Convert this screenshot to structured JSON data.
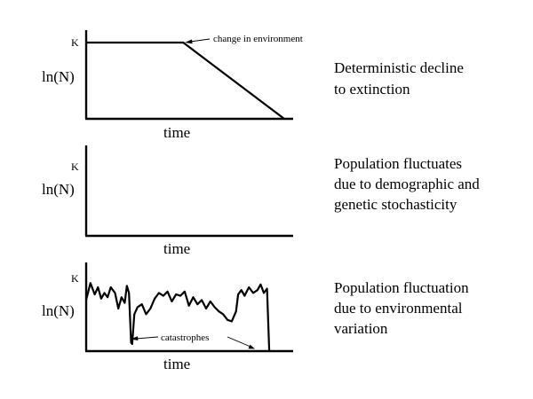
{
  "chart_data": [
    {
      "type": "line",
      "ylabel": "ln(N)",
      "xlabel": "time",
      "k_label": "K",
      "description": [
        "Deterministic decline",
        "to extinction"
      ],
      "annotation": "change in environment",
      "x": [
        0,
        0.49,
        1.0
      ],
      "y": [
        1.0,
        1.0,
        0.0
      ],
      "ylim": [
        0,
        1.2
      ]
    },
    {
      "type": "line",
      "ylabel": "ln(N)",
      "xlabel": "time",
      "k_label": "K",
      "description": [
        "Population fluctuates",
        "due to demographic and",
        "genetic stochasticity"
      ],
      "x": [],
      "y": []
    },
    {
      "type": "line",
      "ylabel": "ln(N)",
      "xlabel": "time",
      "k_label": "K",
      "description": [
        "Population fluctuation",
        "due to environmental",
        "variation"
      ],
      "annotation": "catastrophes",
      "x": [
        0,
        0.02,
        0.04,
        0.055,
        0.07,
        0.085,
        0.1,
        0.115,
        0.135,
        0.15,
        0.165,
        0.18,
        0.19,
        0.2,
        0.21,
        0.215,
        0.225,
        0.24,
        0.26,
        0.28,
        0.3,
        0.32,
        0.34,
        0.36,
        0.38,
        0.4,
        0.42,
        0.44,
        0.46,
        0.48,
        0.5,
        0.52,
        0.54,
        0.56,
        0.58,
        0.6,
        0.62,
        0.64,
        0.66,
        0.68,
        0.7,
        0.71,
        0.725,
        0.74,
        0.76,
        0.78,
        0.8,
        0.815,
        0.83,
        0.845,
        0.855
      ],
      "y": [
        0.72,
        0.96,
        0.8,
        0.9,
        0.74,
        0.82,
        0.76,
        0.9,
        0.82,
        0.6,
        0.76,
        0.68,
        0.92,
        0.82,
        0.12,
        0.1,
        0.52,
        0.62,
        0.66,
        0.52,
        0.6,
        0.74,
        0.82,
        0.78,
        0.84,
        0.7,
        0.8,
        0.78,
        0.84,
        0.64,
        0.76,
        0.66,
        0.72,
        0.6,
        0.7,
        0.62,
        0.56,
        0.52,
        0.44,
        0.42,
        0.56,
        0.8,
        0.86,
        0.78,
        0.9,
        0.82,
        0.86,
        0.94,
        0.82,
        0.88,
        0.0
      ],
      "ylim": [
        0,
        1.2
      ]
    }
  ]
}
